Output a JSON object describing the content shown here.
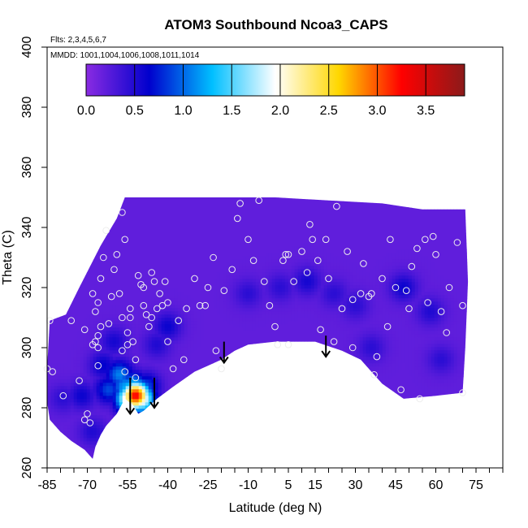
{
  "chart_data": {
    "type": "heatmap",
    "title": "ATOM3 Southbound Ncoa3_CAPS",
    "subtitle_flts": "Flts: 2,3,4,5,6,7",
    "subtitle_mmdd": "MMDD: 1001,1004,1006,1008,1011,1014",
    "xlabel": "Latitude (deg N)",
    "ylabel": "Theta (C)",
    "xlim": [
      -85,
      85
    ],
    "ylim": [
      260,
      400
    ],
    "x_ticks": [
      "-85",
      "-70",
      "-55",
      "-40",
      "-25",
      "-10",
      "5",
      "15",
      "30",
      "45",
      "60",
      "75"
    ],
    "x_tick_values": [
      -85,
      -70,
      -55,
      -40,
      -25,
      -10,
      5,
      15,
      30,
      45,
      60,
      75
    ],
    "y_ticks": [
      "260",
      "280",
      "300",
      "320",
      "340",
      "360",
      "380",
      "400"
    ],
    "y_tick_values": [
      260,
      280,
      300,
      320,
      340,
      360,
      380,
      400
    ],
    "colorbar": {
      "range": [
        0,
        3.9
      ],
      "tick_labels": [
        "0.0",
        "0.5",
        "1.0",
        "1.5",
        "2.0",
        "2.5",
        "3.0",
        "3.5"
      ],
      "tick_values": [
        0.0,
        0.5,
        1.0,
        1.5,
        2.0,
        2.5,
        3.0,
        3.5
      ],
      "colors": [
        "#8a2be2",
        "#0000cd",
        "#00bfff",
        "#ffffff",
        "#ffd700",
        "#ff0000",
        "#8b1a1a"
      ]
    },
    "background_value": 0.2,
    "field_outline": [
      [
        -85,
        293
      ],
      [
        -84,
        309
      ],
      [
        -78,
        311
      ],
      [
        -73,
        320
      ],
      [
        -69,
        327
      ],
      [
        -65,
        334
      ],
      [
        -59,
        343
      ],
      [
        -56,
        350
      ],
      [
        -40,
        350
      ],
      [
        -20,
        350
      ],
      [
        0,
        350
      ],
      [
        20,
        349
      ],
      [
        40,
        348
      ],
      [
        55,
        346
      ],
      [
        71,
        346
      ],
      [
        72,
        322
      ],
      [
        71,
        300
      ],
      [
        70,
        285
      ],
      [
        60,
        284
      ],
      [
        48,
        283
      ],
      [
        40,
        288
      ],
      [
        36,
        292
      ],
      [
        32,
        296
      ],
      [
        25,
        299
      ],
      [
        15,
        302
      ],
      [
        0,
        302
      ],
      [
        -10,
        301
      ],
      [
        -15,
        299
      ],
      [
        -20,
        296
      ],
      [
        -30,
        292
      ],
      [
        -38,
        287
      ],
      [
        -44,
        283
      ],
      [
        -49,
        279
      ],
      [
        -51,
        278
      ],
      [
        -53,
        281
      ],
      [
        -56,
        283
      ],
      [
        -59,
        278
      ],
      [
        -63,
        274
      ],
      [
        -65,
        271
      ],
      [
        -67,
        267
      ],
      [
        -68,
        263
      ],
      [
        -71,
        266
      ],
      [
        -76,
        269
      ],
      [
        -80,
        272
      ],
      [
        -84,
        276
      ],
      [
        -85,
        282
      ]
    ],
    "features": [
      {
        "x": -52,
        "y": 284,
        "value": 3.3
      },
      {
        "x": -54,
        "y": 283,
        "value": 2.4
      },
      {
        "x": -50,
        "y": 283,
        "value": 2.2
      },
      {
        "x": -53,
        "y": 287,
        "value": 1.4
      },
      {
        "x": -56,
        "y": 287,
        "value": 1.2
      },
      {
        "x": -58,
        "y": 291,
        "value": 1.1
      },
      {
        "x": -62,
        "y": 286,
        "value": 0.9
      },
      {
        "x": -48,
        "y": 287,
        "value": 0.9
      },
      {
        "x": -72,
        "y": 284,
        "value": 0.6
      },
      {
        "x": -64,
        "y": 294,
        "value": 0.65
      },
      {
        "x": -60,
        "y": 302,
        "value": 0.55
      },
      {
        "x": -40,
        "y": 307,
        "value": 0.6
      },
      {
        "x": -44,
        "y": 301,
        "value": 0.5
      },
      {
        "x": -68,
        "y": 272,
        "value": 0.5
      },
      {
        "x": -79,
        "y": 283,
        "value": 0.45
      },
      {
        "x": -10,
        "y": 318,
        "value": 0.45
      },
      {
        "x": 2,
        "y": 320,
        "value": 0.45
      },
      {
        "x": 12,
        "y": 322,
        "value": 0.55
      },
      {
        "x": 22,
        "y": 318,
        "value": 0.45
      },
      {
        "x": 30,
        "y": 314,
        "value": 0.45
      },
      {
        "x": 48,
        "y": 320,
        "value": 0.6
      },
      {
        "x": 58,
        "y": 312,
        "value": 0.5
      },
      {
        "x": 62,
        "y": 296,
        "value": 0.45
      },
      {
        "x": 36,
        "y": 300,
        "value": 0.45
      }
    ],
    "observations": [
      [
        -85,
        293
      ],
      [
        -84,
        309
      ],
      [
        -83,
        292
      ],
      [
        -79,
        284
      ],
      [
        -73,
        289
      ],
      [
        -71,
        276
      ],
      [
        -76,
        309
      ],
      [
        -71,
        306
      ],
      [
        -68,
        318
      ],
      [
        -64,
        330
      ],
      [
        -63,
        339
      ],
      [
        -57,
        345
      ],
      [
        -56,
        336
      ],
      [
        -70,
        278
      ],
      [
        -69,
        275
      ],
      [
        -68,
        301
      ],
      [
        -67,
        302
      ],
      [
        -66,
        294
      ],
      [
        -66,
        300
      ],
      [
        -66,
        304
      ],
      [
        -65,
        307
      ],
      [
        -67,
        312
      ],
      [
        -66,
        315
      ],
      [
        -65,
        323
      ],
      [
        -62,
        308
      ],
      [
        -61,
        317
      ],
      [
        -60,
        326
      ],
      [
        -59,
        331
      ],
      [
        -58,
        318
      ],
      [
        -57,
        310
      ],
      [
        -57,
        299
      ],
      [
        -56,
        292
      ],
      [
        -55,
        301
      ],
      [
        -55,
        305
      ],
      [
        -54,
        310
      ],
      [
        -54,
        313
      ],
      [
        -53,
        302
      ],
      [
        -52,
        296
      ],
      [
        -52,
        290
      ],
      [
        -51,
        324
      ],
      [
        -50,
        321
      ],
      [
        -49,
        320
      ],
      [
        -49,
        314
      ],
      [
        -48,
        311
      ],
      [
        -47,
        307
      ],
      [
        -46,
        310
      ],
      [
        -46,
        325
      ],
      [
        -45,
        322
      ],
      [
        -44,
        313
      ],
      [
        -43,
        318
      ],
      [
        -42,
        314
      ],
      [
        -41,
        322
      ],
      [
        -40,
        315
      ],
      [
        -40,
        302
      ],
      [
        -38,
        293
      ],
      [
        -36,
        309
      ],
      [
        -34,
        296
      ],
      [
        -33,
        313
      ],
      [
        -30,
        323
      ],
      [
        -28,
        314
      ],
      [
        -26,
        314
      ],
      [
        -25,
        320
      ],
      [
        -23,
        330
      ],
      [
        -22,
        299
      ],
      [
        -20,
        293
      ],
      [
        -19,
        319
      ],
      [
        -16,
        326
      ],
      [
        -14,
        343
      ],
      [
        -13,
        348
      ],
      [
        -10,
        336
      ],
      [
        -8,
        329
      ],
      [
        -6,
        349
      ],
      [
        -4,
        322
      ],
      [
        -2,
        314
      ],
      [
        0,
        307
      ],
      [
        1,
        301
      ],
      [
        3,
        329
      ],
      [
        4,
        331
      ],
      [
        5,
        301
      ],
      [
        5,
        331
      ],
      [
        7,
        322
      ],
      [
        10,
        332
      ],
      [
        12,
        325
      ],
      [
        13,
        341
      ],
      [
        14,
        336
      ],
      [
        16,
        329
      ],
      [
        17,
        306
      ],
      [
        19,
        336
      ],
      [
        20,
        323
      ],
      [
        22,
        302
      ],
      [
        23,
        347
      ],
      [
        25,
        313
      ],
      [
        27,
        332
      ],
      [
        29,
        316
      ],
      [
        29,
        300
      ],
      [
        32,
        318
      ],
      [
        33,
        328
      ],
      [
        35,
        317
      ],
      [
        36,
        318
      ],
      [
        37,
        291
      ],
      [
        38,
        297
      ],
      [
        40,
        323
      ],
      [
        42,
        307
      ],
      [
        43,
        336
      ],
      [
        45,
        320
      ],
      [
        47,
        286
      ],
      [
        49,
        319
      ],
      [
        50,
        313
      ],
      [
        51,
        327
      ],
      [
        53,
        333
      ],
      [
        54,
        283
      ],
      [
        56,
        336
      ],
      [
        57,
        315
      ],
      [
        59,
        337
      ],
      [
        60,
        331
      ],
      [
        62,
        312
      ],
      [
        64,
        305
      ],
      [
        65,
        320
      ],
      [
        68,
        335
      ],
      [
        70,
        314
      ],
      [
        70,
        285
      ]
    ],
    "arrows": [
      {
        "x": -54,
        "y_top": 290,
        "y_tip": 278
      },
      {
        "x": -45,
        "y_top": 290,
        "y_tip": 280
      },
      {
        "x": -19,
        "y_top": 302,
        "y_tip": 295
      },
      {
        "x": 19,
        "y_top": 304,
        "y_tip": 297
      }
    ],
    "grid": false,
    "legend": "colorbar-top"
  }
}
